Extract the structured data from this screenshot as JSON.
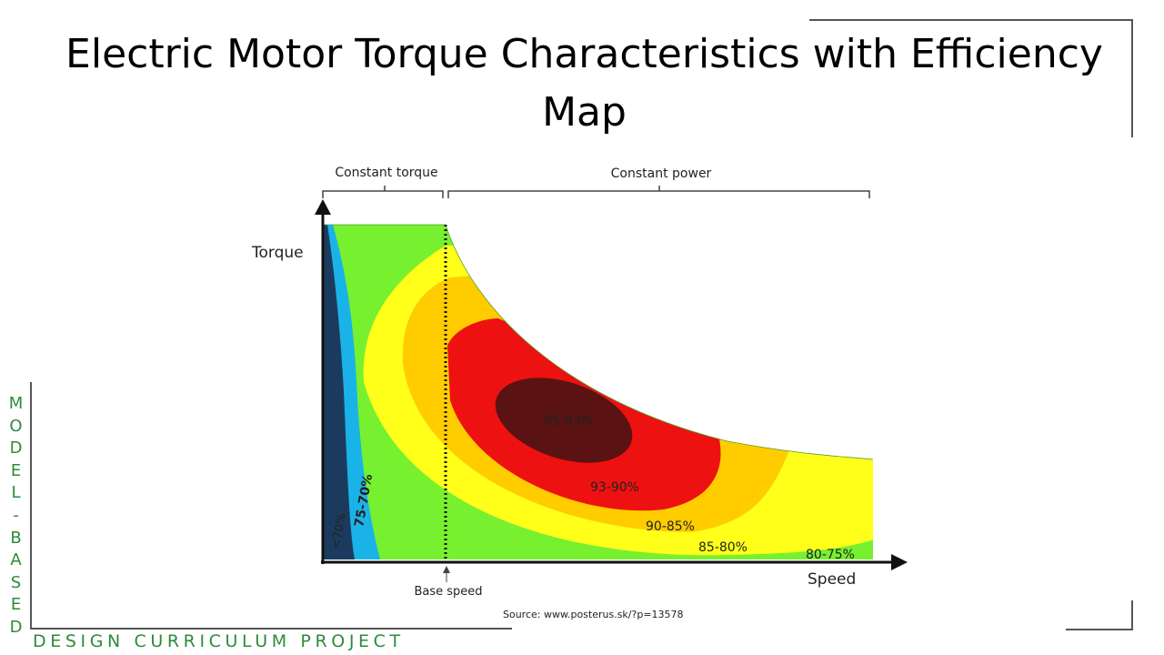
{
  "slide": {
    "title": "Electric Motor Torque Characteristics with Efficiency Map",
    "source": "Source: www.posterus.sk/?p=13578",
    "side_text": [
      "M",
      "O",
      "D",
      "E",
      "L",
      "-",
      "B",
      "A",
      "S",
      "E",
      "D"
    ],
    "footer_text": "DESIGN CURRICULUM PROJECT"
  },
  "diagram": {
    "regions": [
      {
        "id": "constant-torque",
        "label": "Constant torque"
      },
      {
        "id": "constant-power",
        "label": "Constant power"
      }
    ],
    "axes": {
      "y_label": "Torque",
      "x_label": "Speed"
    },
    "base_speed_label": "Base speed",
    "efficiency_zones": [
      {
        "label": "<70%",
        "color": "#1b3b5e"
      },
      {
        "label": "75-70%",
        "color": "#1ab3e8"
      },
      {
        "label": "80-75%",
        "color": "#77f02f"
      },
      {
        "label": "85-80%",
        "color": "#ffff1a"
      },
      {
        "label": "90-85%",
        "color": "#ffcc00"
      },
      {
        "label": "93-90%",
        "color": "#ee1111"
      },
      {
        "label": "95-93%",
        "color": "#5a1212"
      }
    ]
  }
}
